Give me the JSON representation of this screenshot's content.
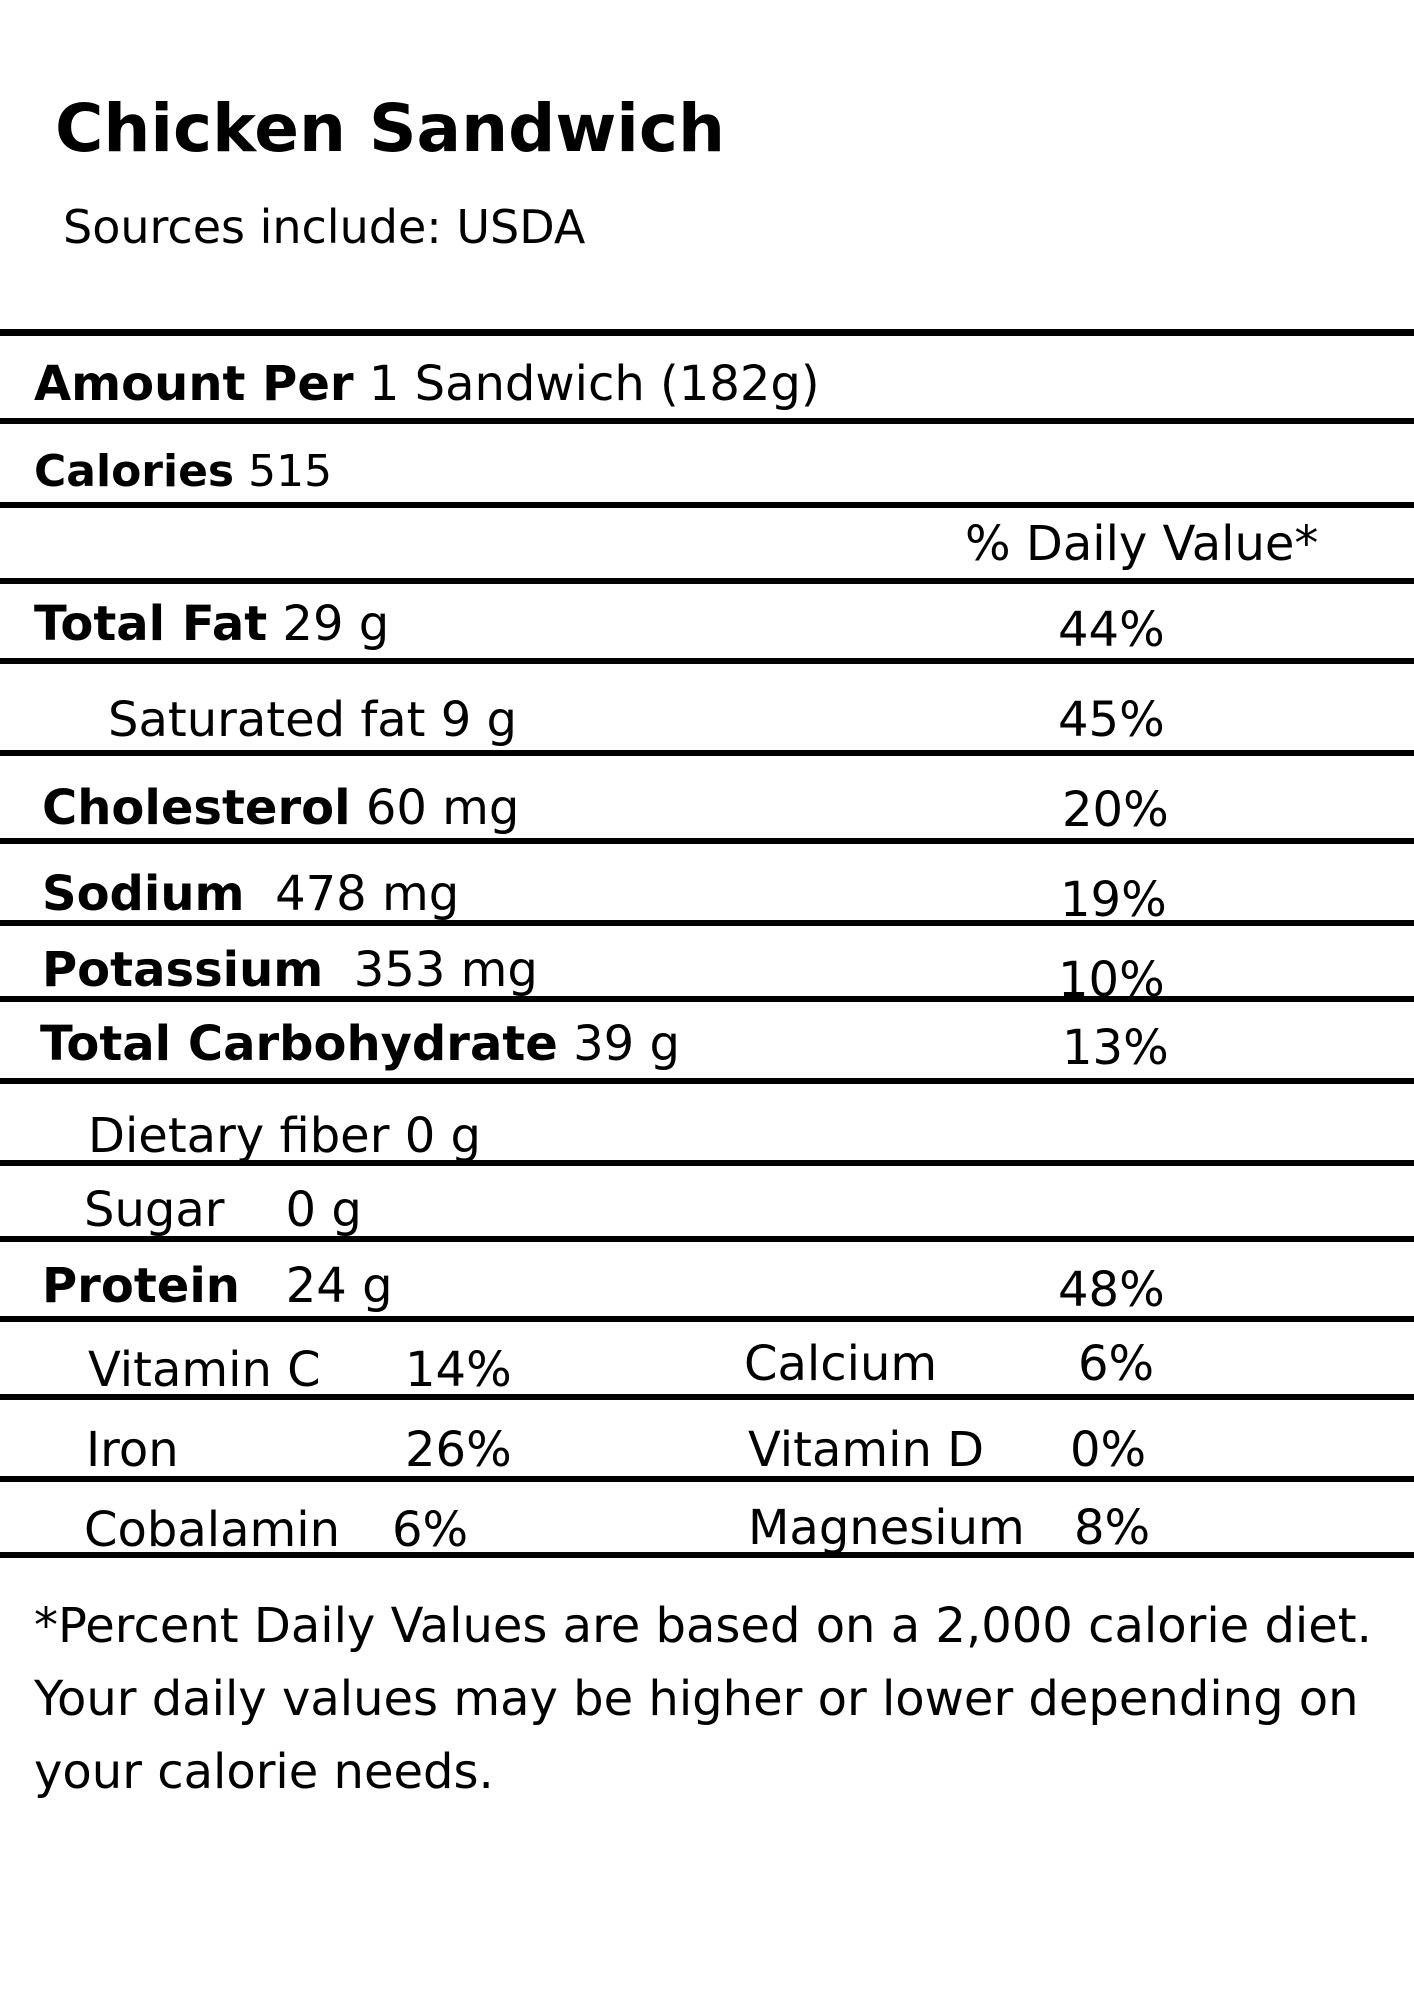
{
  "label": {
    "title": "Chicken Sandwich",
    "source": "Sources include: USDA",
    "amount_per_label": "Amount Per",
    "amount_per_value": "1 Sandwich (182g)",
    "calories_label": "Calories",
    "calories_value": "515",
    "daily_value_header": "% Daily Value*",
    "nutrients": [
      {
        "name": "Total Fat",
        "amount": "29 g",
        "dv": "44%"
      },
      {
        "name": "Saturated fat",
        "amount": "9 g",
        "dv": "45%"
      },
      {
        "name": "Cholesterol",
        "amount": "60 mg",
        "dv": "20%"
      },
      {
        "name": "Sodium",
        "amount": "478 mg",
        "dv": "19%"
      },
      {
        "name": "Potassium",
        "amount": "353 mg",
        "dv": "10%"
      },
      {
        "name": "Total Carbohydrate",
        "amount": "39 g",
        "dv": "13%"
      },
      {
        "name": "Dietary fiber",
        "amount": "0 g",
        "dv": ""
      },
      {
        "name": "Sugar",
        "amount": "0 g",
        "dv": ""
      },
      {
        "name": "Protein",
        "amount": "24 g",
        "dv": "48%"
      }
    ],
    "vitamins": [
      {
        "name": "Vitamin C",
        "dv": "14%"
      },
      {
        "name": "Calcium",
        "dv": "6%"
      },
      {
        "name": "Iron",
        "dv": "26%"
      },
      {
        "name": "Vitamin D",
        "dv": "0%"
      },
      {
        "name": "Cobalamin",
        "dv": "6%"
      },
      {
        "name": "Magnesium",
        "dv": "8%"
      }
    ],
    "footnote": "*Percent Daily Values are based on a 2,000 calorie diet. Your daily values may be higher or lower depending on your calorie needs."
  }
}
